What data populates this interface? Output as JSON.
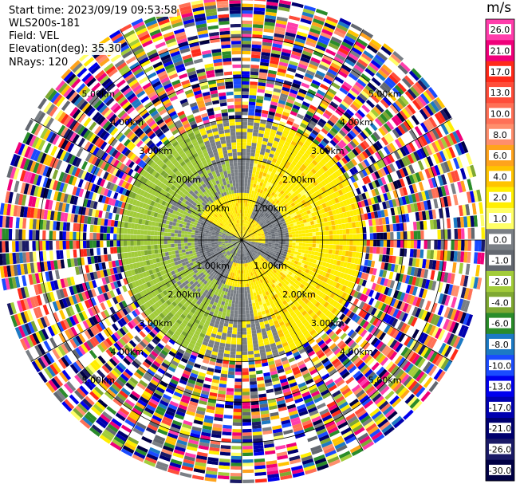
{
  "header": {
    "start_time": "Start time: 2023/09/19 09:53:58",
    "instrument": "WLS200s-181",
    "field": "Field: VEL",
    "elevation": "Elevation(deg): 35.30",
    "nrays": "NRays: 120"
  },
  "colorbar": {
    "unit": "m/s",
    "bins": [
      {
        "label": "26.0",
        "color": "#ff3dab"
      },
      {
        "label": "21.0",
        "color": "#f0007a"
      },
      {
        "label": "17.0",
        "color": "#ff2a1a"
      },
      {
        "label": "13.0",
        "color": "#ff4d3a"
      },
      {
        "label": "10.0",
        "color": "#ff7056"
      },
      {
        "label": "8.0",
        "color": "#ff8e6c"
      },
      {
        "label": "6.0",
        "color": "#ffa31c"
      },
      {
        "label": "4.0",
        "color": "#ffc400"
      },
      {
        "label": "2.0",
        "color": "#ffee00"
      },
      {
        "label": "1.0",
        "color": "#ffff66"
      },
      {
        "label": "0.0",
        "color": "#7a7f85"
      },
      {
        "label": "-1.0",
        "color": "#636870"
      },
      {
        "label": "-2.0",
        "color": "#a2cc3a"
      },
      {
        "label": "-4.0",
        "color": "#7ea832"
      },
      {
        "label": "-6.0",
        "color": "#2a8c2a"
      },
      {
        "label": "-8.0",
        "color": "#1c7ac4"
      },
      {
        "label": "-10.0",
        "color": "#1a4bff"
      },
      {
        "label": "-13.0",
        "color": "#0000ee"
      },
      {
        "label": "-17.0",
        "color": "#0000b0"
      },
      {
        "label": "-21.0",
        "color": "#00006e"
      },
      {
        "label": "-26.0",
        "color": "#1a1a66"
      },
      {
        "label": "-30.0",
        "color": "#000044"
      }
    ]
  },
  "chart_data": {
    "type": "heatmap",
    "projection": "polar PPI",
    "field": "VEL",
    "range_rings_km": [
      1,
      2,
      3,
      4,
      5
    ],
    "ring_label_unit": "km",
    "ring_labels": [
      "1.00km",
      "2.00km",
      "3.00km",
      "4.00km",
      "5.00km"
    ],
    "nrays": 120,
    "max_range_km": 6,
    "pattern": [
      {
        "range_km": [
          0.0,
          1.0
        ],
        "dominant": "mixed",
        "colors": [
          "#ffee00",
          "#ffc400",
          "#7a7f85",
          "#a2cc3a"
        ]
      },
      {
        "range_km": [
          1.0,
          2.0
        ],
        "dominant": "mixed",
        "colors": [
          "#7a7f85",
          "#ffee00",
          "#a2cc3a"
        ]
      },
      {
        "range_km": [
          2.0,
          3.0
        ],
        "dominant": "sector",
        "colors": [
          "#a2cc3a",
          "#ffee00",
          "#ffc400"
        ]
      },
      {
        "range_km": [
          3.0,
          6.0
        ],
        "dominant": "noise",
        "colors": []
      }
    ]
  }
}
